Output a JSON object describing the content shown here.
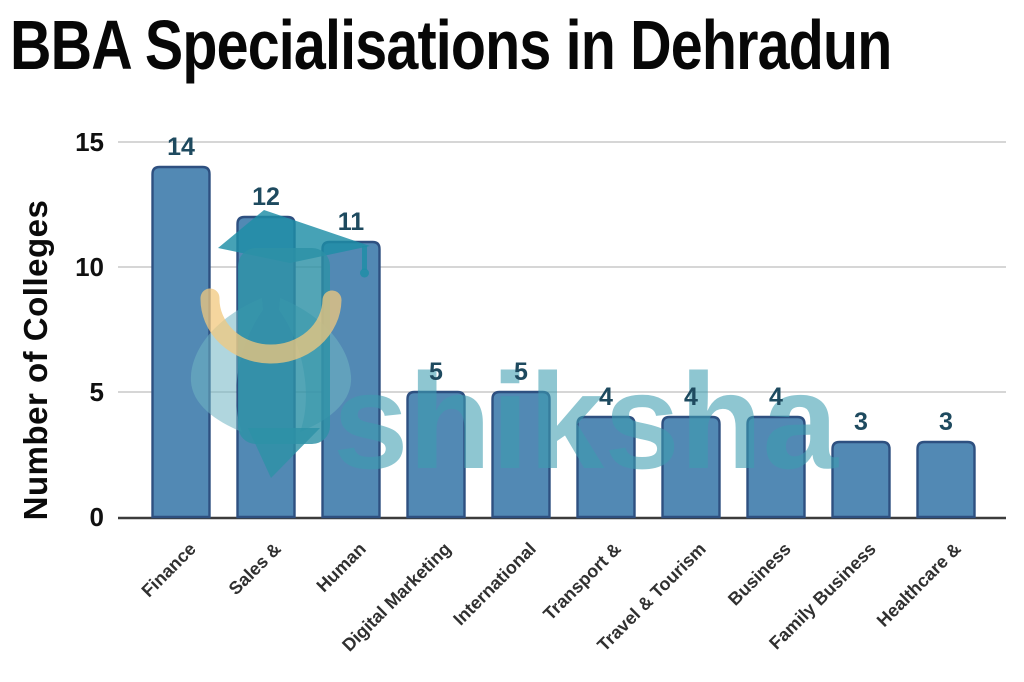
{
  "title": "BBA Specialisations in Dehradun",
  "watermark": {
    "brand": "shiksha"
  },
  "chart_data": {
    "type": "bar",
    "title": "BBA Specialisations in Dehradun",
    "categories": [
      "Finance",
      "Sales &",
      "Human",
      "Digital Marketing",
      "International",
      "Transport &",
      "Travel & Tourism",
      "Business",
      "Family Business",
      "Healthcare &"
    ],
    "values": [
      14,
      12,
      11,
      5,
      5,
      4,
      4,
      4,
      3,
      3
    ],
    "xlabel": "",
    "ylabel": "Number of Colleges",
    "yticks": [
      0,
      5,
      10,
      15
    ],
    "ylim": [
      0,
      15
    ],
    "grid": true,
    "legend": "none",
    "colors": {
      "bar_fill": "#5289b4",
      "bar_border": "#2e5080",
      "value_label": "#1e4a5f",
      "axis_label": "#303030",
      "tick_label": "#101010",
      "gridline": "#c9c9c9",
      "baseline": "#3c3c3c",
      "watermark_teal": "#2d91a6",
      "watermark_light_teal": "#6fb5c2",
      "watermark_yellow": "#f2c87d"
    }
  }
}
